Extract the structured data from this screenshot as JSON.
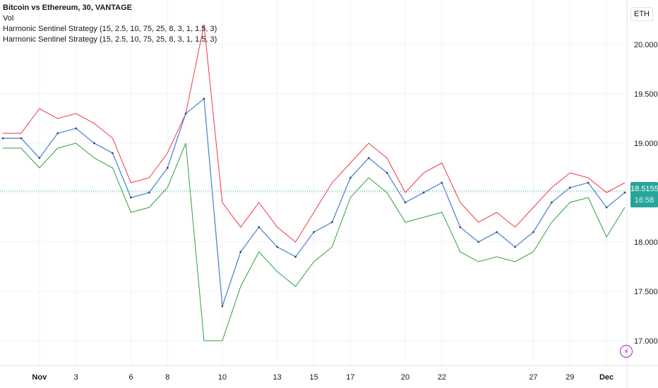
{
  "legend": {
    "title": "Bitcoin vs Ethereum, 30, VANTAGE",
    "line2": "Vol",
    "line3": "Harmonic Sentinel Strategy (15, 2.5, 10, 75, 25, 8, 3, 1, 1.5, 3)",
    "line4": "Harmonic Sentinel Strategy (15, 2.5, 10, 75, 25, 8, 3, 1, 1.5, 3)"
  },
  "currency": "ETH",
  "last_price": {
    "value": "18.5155",
    "countdown": "16:58"
  },
  "colors": {
    "price": "#5b8fd6",
    "upper": "#f23645",
    "lower": "#2ea043",
    "candle": "#434651",
    "last": "#26a69a",
    "grid": "#f0f3fa"
  },
  "chart_data": {
    "type": "line",
    "ylim": [
      16.75,
      20.45
    ],
    "y_ticks": [
      "20.0000",
      "19.5000",
      "19.0000",
      "18.5000",
      "18.0000",
      "17.5000",
      "17.0000"
    ],
    "y_tick_values": [
      20.0,
      19.5,
      19.0,
      18.5,
      18.0,
      17.5,
      17.0
    ],
    "x_ticks": [
      "Nov",
      "3",
      "6",
      "8",
      "10",
      "13",
      "15",
      "17",
      "20",
      "22",
      "27",
      "29",
      "Dec"
    ],
    "x_tick_dates": [
      "Nov 1",
      "Nov 3",
      "Nov 6",
      "Nov 8",
      "Nov 10",
      "Nov 13",
      "Nov 15",
      "Nov 17",
      "Nov 20",
      "Nov 22",
      "Nov 27",
      "Nov 29",
      "Dec 1"
    ],
    "x": [
      "Oct 30",
      "Oct 31",
      "Nov 1",
      "Nov 2",
      "Nov 3",
      "Nov 4",
      "Nov 5",
      "Nov 6",
      "Nov 7",
      "Nov 8",
      "Nov 9",
      "Nov 9",
      "Nov 10",
      "Nov 11",
      "Nov 12",
      "Nov 13",
      "Nov 14",
      "Nov 15",
      "Nov 16",
      "Nov 17",
      "Nov 18",
      "Nov 19",
      "Nov 20",
      "Nov 21",
      "Nov 22",
      "Nov 23",
      "Nov 24",
      "Nov 25",
      "Nov 26",
      "Nov 27",
      "Nov 28",
      "Nov 29",
      "Nov 30",
      "Dec 1",
      "Dec 2"
    ],
    "series": [
      {
        "values": [
          19.05,
          19.05,
          18.85,
          19.1,
          19.15,
          19.0,
          18.9,
          18.45,
          18.5,
          18.75,
          19.3,
          19.45,
          17.35,
          17.9,
          18.15,
          17.95,
          17.85,
          18.1,
          18.2,
          18.65,
          18.85,
          18.7,
          18.4,
          18.5,
          18.6,
          18.15,
          18.0,
          18.1,
          17.95,
          18.1,
          18.4,
          18.55,
          18.6,
          18.35,
          18.5
        ]
      },
      {
        "values": [
          19.1,
          19.1,
          19.35,
          19.25,
          19.3,
          19.2,
          19.05,
          18.6,
          18.65,
          18.9,
          19.3,
          20.2,
          18.4,
          18.15,
          18.4,
          18.15,
          18.0,
          18.3,
          18.6,
          18.8,
          19.0,
          18.85,
          18.5,
          18.7,
          18.8,
          18.4,
          18.2,
          18.3,
          18.15,
          18.35,
          18.55,
          18.7,
          18.65,
          18.5,
          18.6
        ]
      },
      {
        "values": [
          18.95,
          18.95,
          18.75,
          18.95,
          19.0,
          18.85,
          18.75,
          18.3,
          18.35,
          18.55,
          19.0,
          17.0,
          17.0,
          17.55,
          17.9,
          17.7,
          17.55,
          17.8,
          17.95,
          18.45,
          18.65,
          18.5,
          18.2,
          18.25,
          18.3,
          17.9,
          17.8,
          17.85,
          17.8,
          17.9,
          18.2,
          18.4,
          18.45,
          18.05,
          18.35
        ]
      }
    ]
  }
}
